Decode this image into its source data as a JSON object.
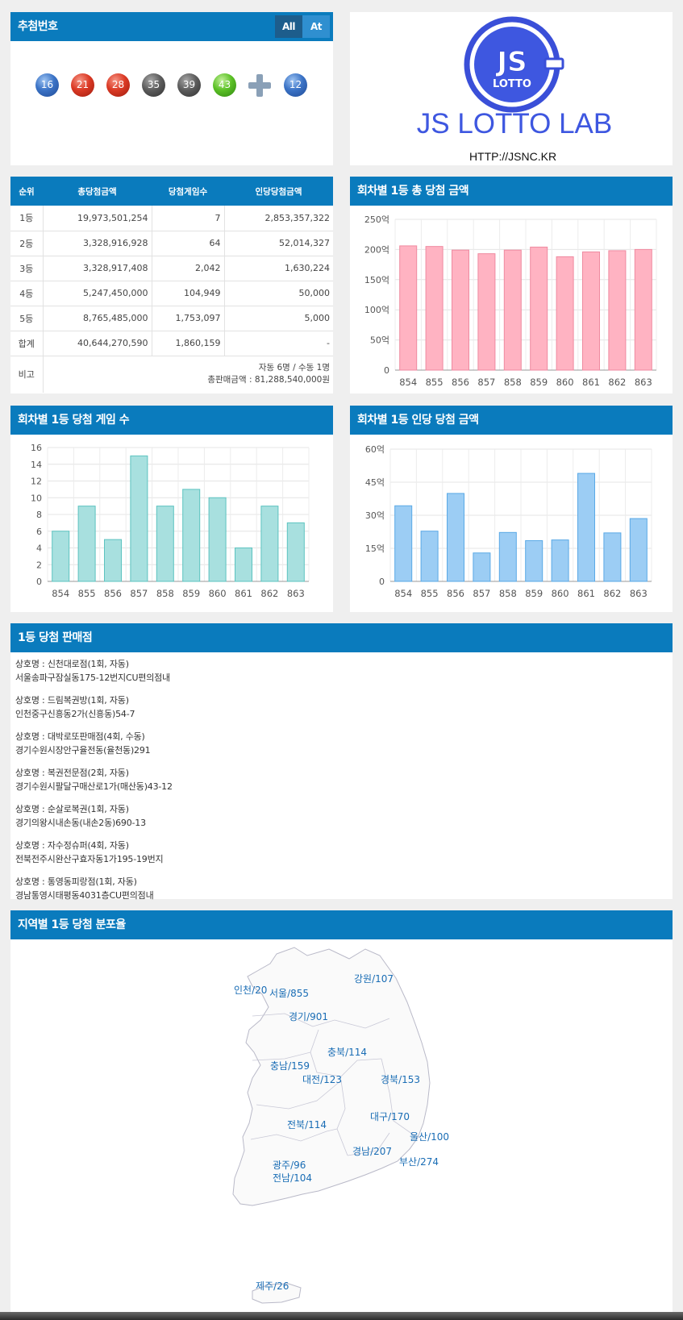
{
  "colors": {
    "header": "#0a7bbd",
    "pink_bar": "#ffb3c2",
    "teal_bar": "#a8e0df",
    "blue_bar": "#9ccdf4"
  },
  "draw": {
    "title": "추첨번호",
    "toggle_all": "All",
    "toggle_at": "At",
    "balls": [
      {
        "num": "16",
        "color": "blue"
      },
      {
        "num": "21",
        "color": "red"
      },
      {
        "num": "28",
        "color": "red"
      },
      {
        "num": "35",
        "color": "dark"
      },
      {
        "num": "39",
        "color": "dark"
      },
      {
        "num": "43",
        "color": "green"
      }
    ],
    "bonus": {
      "num": "12",
      "color": "blue"
    },
    "plus_icon": "plus-icon"
  },
  "logo": {
    "text": "JS LOTTO LAB",
    "url": "HTTP://JSNC.KR",
    "badge_top": "JS",
    "badge_bottom": "LOTTO"
  },
  "prize_table": {
    "headers": [
      "순위",
      "총당첨금액",
      "당첨게임수",
      "인당당첨금액"
    ],
    "rows": [
      [
        "1등",
        "19,973,501,254",
        "7",
        "2,853,357,322"
      ],
      [
        "2등",
        "3,328,916,928",
        "64",
        "52,014,327"
      ],
      [
        "3등",
        "3,328,917,408",
        "2,042",
        "1,630,224"
      ],
      [
        "4등",
        "5,247,450,000",
        "104,949",
        "50,000"
      ],
      [
        "5등",
        "8,765,485,000",
        "1,753,097",
        "5,000"
      ],
      [
        "합계",
        "40,644,270,590",
        "1,860,159",
        "-"
      ]
    ],
    "note_label": "비고",
    "note_line1": "자동 6명 / 수동 1명",
    "note_line2": "총판매금액 : 81,288,540,000원"
  },
  "chart_titles": {
    "total": "회차별 1등 총 당첨 금액",
    "games": "회차별 1등 당첨 게임 수",
    "per": "회차별 1등 인당 당첨 금액"
  },
  "chart_data": [
    {
      "type": "bar",
      "title": "회차별 1등 총 당첨 금액",
      "categories": [
        "854",
        "855",
        "856",
        "857",
        "858",
        "859",
        "860",
        "861",
        "862",
        "863"
      ],
      "values": [
        206,
        205,
        199,
        193,
        199,
        204,
        188,
        196,
        198,
        200
      ],
      "ylim": [
        0,
        250
      ],
      "yticks": [
        "0",
        "50억",
        "100억",
        "150억",
        "200억",
        "250억"
      ],
      "grid": true
    },
    {
      "type": "bar",
      "title": "회차별 1등 당첨 게임 수",
      "categories": [
        "854",
        "855",
        "856",
        "857",
        "858",
        "859",
        "860",
        "861",
        "862",
        "863"
      ],
      "values": [
        6,
        9,
        5,
        15,
        9,
        11,
        10,
        4,
        9,
        7
      ],
      "ylim": [
        0,
        16
      ],
      "yticks": [
        "0",
        "2",
        "4",
        "6",
        "8",
        "10",
        "12",
        "14",
        "16"
      ],
      "grid": true
    },
    {
      "type": "bar",
      "title": "회차별 1등 인당 당첨 금액",
      "categories": [
        "854",
        "855",
        "856",
        "857",
        "858",
        "859",
        "860",
        "861",
        "862",
        "863"
      ],
      "values": [
        34.3,
        22.8,
        39.9,
        12.9,
        22.2,
        18.5,
        18.8,
        49,
        22,
        28.5
      ],
      "ylim": [
        0,
        60
      ],
      "yticks": [
        "0",
        "15억",
        "30억",
        "45억",
        "60억"
      ],
      "grid": true
    }
  ],
  "stores": {
    "title": "1등 당첨 판매점",
    "items": [
      {
        "name": "상호명 : 신천대로점(1회, 자동)",
        "addr": "서울송파구잠실동175-12번지CU편의점내"
      },
      {
        "name": "상호명 : 드림복권방(1회, 자동)",
        "addr": "인천중구신흥동2가(신흥동)54-7"
      },
      {
        "name": "상호명 : 대박로또판매점(4회, 수동)",
        "addr": "경기수원시장안구율전동(율천동)291"
      },
      {
        "name": "상호명 : 복권전문점(2회, 자동)",
        "addr": "경기수원시팔달구매산로1가(매산동)43-12"
      },
      {
        "name": "상호명 : 순살로복권(1회, 자동)",
        "addr": "경기의왕시내손동(내손2동)690-13"
      },
      {
        "name": "상호명 : 자수정슈퍼(4회, 자동)",
        "addr": "전북전주시완산구효자동1가195-19번지"
      },
      {
        "name": "상호명 : 통영동피랑점(1회, 자동)",
        "addr": "경남통영시태평동4031층CU편의점내"
      }
    ]
  },
  "map": {
    "title": "지역별 1등 당첨 분포율",
    "regions": [
      {
        "label": "인천/20",
        "name": "incheon"
      },
      {
        "label": "서울/855",
        "name": "seoul"
      },
      {
        "label": "강원/107",
        "name": "gangwon"
      },
      {
        "label": "경기/901",
        "name": "gyeonggi"
      },
      {
        "label": "충북/114",
        "name": "chungbuk"
      },
      {
        "label": "충남/159",
        "name": "chungnam"
      },
      {
        "label": "대전/123",
        "name": "daejeon"
      },
      {
        "label": "경북/153",
        "name": "gyeongbuk"
      },
      {
        "label": "전북/114",
        "name": "jeonbuk"
      },
      {
        "label": "대구/170",
        "name": "daegu"
      },
      {
        "label": "울산/100",
        "name": "ulsan"
      },
      {
        "label": "경남/207",
        "name": "gyeongnam"
      },
      {
        "label": "부산/274",
        "name": "busan"
      },
      {
        "label": "광주/96",
        "name": "gwangju"
      },
      {
        "label": "전남/104",
        "name": "jeonnam"
      },
      {
        "label": "제주/26",
        "name": "jeju"
      }
    ]
  }
}
